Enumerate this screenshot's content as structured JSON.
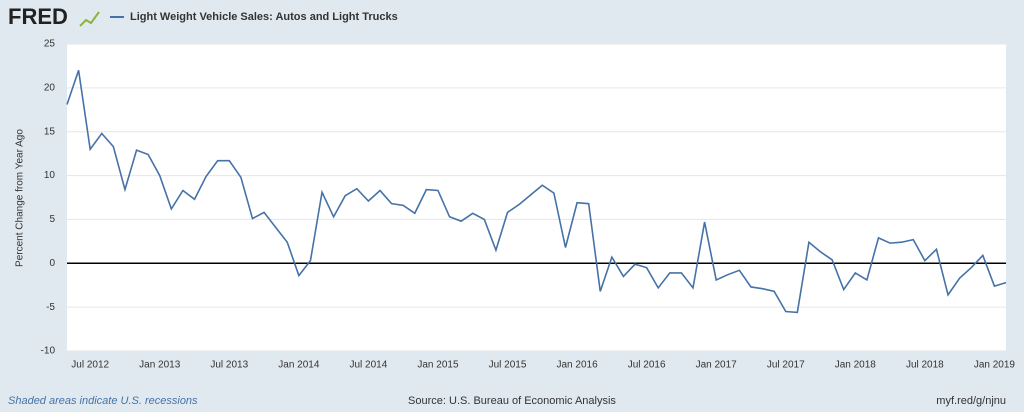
{
  "chart_data": {
    "type": "line",
    "brand": "FRED",
    "series": [
      {
        "name": "Light Weight Vehicle Sales: Autos and Light Trucks",
        "color": "#4572a7",
        "values": [
          18.1,
          22.0,
          13.0,
          14.8,
          13.3,
          8.4,
          12.9,
          12.4,
          10.0,
          6.2,
          8.3,
          7.3,
          9.9,
          11.7,
          11.7,
          9.8,
          5.1,
          5.8,
          4.1,
          2.4,
          -1.4,
          0.3,
          8.1,
          5.3,
          7.7,
          8.5,
          7.1,
          8.3,
          6.8,
          6.6,
          5.7,
          8.4,
          8.3,
          5.3,
          4.8,
          5.7,
          5.0,
          1.5,
          5.8,
          6.7,
          7.8,
          8.9,
          8.0,
          1.8,
          6.9,
          6.8,
          -3.2,
          0.7,
          -1.5,
          -0.1,
          -0.5,
          -2.8,
          -1.1,
          -1.1,
          -2.8,
          4.7,
          -1.9,
          -1.3,
          -0.8,
          -2.7,
          -2.9,
          -3.2,
          -5.5,
          -5.6,
          2.4,
          1.3,
          0.4,
          -3.0,
          -1.1,
          -1.9,
          2.9,
          2.3,
          2.4,
          2.7,
          0.3,
          1.6,
          -3.6,
          -1.7,
          -0.5,
          0.9,
          -2.6,
          -2.2
        ]
      }
    ],
    "categories": [
      null,
      null,
      "Jul 2012",
      null,
      null,
      null,
      null,
      null,
      "Jan 2013",
      null,
      null,
      null,
      null,
      null,
      "Jul 2013",
      null,
      null,
      null,
      null,
      null,
      "Jan 2014",
      null,
      null,
      null,
      null,
      null,
      "Jul 2014",
      null,
      null,
      null,
      null,
      null,
      "Jan 2015",
      null,
      null,
      null,
      null,
      null,
      "Jul 2015",
      null,
      null,
      null,
      null,
      null,
      "Jan 2016",
      null,
      null,
      null,
      null,
      null,
      "Jul 2016",
      null,
      null,
      null,
      null,
      null,
      "Jan 2017",
      null,
      null,
      null,
      null,
      null,
      "Jul 2017",
      null,
      null,
      null,
      null,
      null,
      "Jan 2018",
      null,
      null,
      null,
      null,
      null,
      "Jul 2018",
      null,
      null,
      null,
      null,
      null,
      "Jan 2019",
      null
    ],
    "ylabel": "Percent Change from Year Ago",
    "ylim": [
      -10,
      25
    ],
    "yticks": [
      -10,
      -5,
      0,
      5,
      10,
      15,
      20,
      25
    ],
    "grid": true,
    "zero_line": 0,
    "footer_left": "Shaded areas indicate U.S. recessions",
    "footer_center": "Source: U.S. Bureau of Economic Analysis",
    "footer_right": "myf.red/g/njnu"
  }
}
